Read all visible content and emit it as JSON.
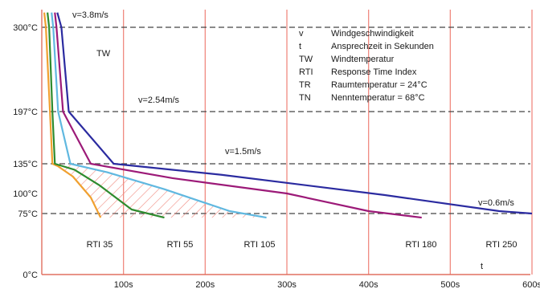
{
  "chart_data": {
    "type": "line",
    "xlabel": "t",
    "ylabel": "TW",
    "xlim": [
      0,
      600
    ],
    "ylim": [
      0,
      300
    ],
    "x_ticks": [
      "100s",
      "200s",
      "300s",
      "400s",
      "500s",
      "600s"
    ],
    "y_ticks": [
      {
        "label": "300°C",
        "value": 300
      },
      {
        "label": "197°C",
        "value": 197
      },
      {
        "label": "135°C",
        "value": 135
      },
      {
        "label": "100°C",
        "value": 100
      },
      {
        "label": "75°C",
        "value": 75
      },
      {
        "label": "0°C",
        "value": 0
      }
    ],
    "velocity_levels": [
      {
        "label": "v=3.8m/s",
        "value": 300
      },
      {
        "label": "v=2.54m/s",
        "value": 197
      },
      {
        "label": "v=1.5m/s",
        "value": 135
      },
      {
        "label": "v=0.6m/s",
        "value": 75
      }
    ],
    "legend": [
      {
        "key": "v",
        "text": "Windgeschwindigkeit"
      },
      {
        "key": "t",
        "text": "Ansprechzeit in Sekunden"
      },
      {
        "key": "TW",
        "text": "Windtemperatur"
      },
      {
        "key": "RTI",
        "text": "Response Time Index"
      },
      {
        "key": "TR",
        "text": "Raumtemperatur = 24°C"
      },
      {
        "key": "TN",
        "text": "Nenntemperatur = 68°C"
      }
    ],
    "series": [
      {
        "name": "RTI 35",
        "color": "#f0a030",
        "x": [
          3,
          5,
          10,
          13,
          20,
          38,
          60,
          72
        ],
        "y": [
          325,
          300,
          197,
          135,
          132,
          120,
          95,
          70
        ]
      },
      {
        "name": "RTI 55",
        "color": "#2e8b2e",
        "x": [
          7,
          9,
          13,
          16,
          40,
          70,
          110,
          150
        ],
        "y": [
          325,
          300,
          197,
          135,
          128,
          110,
          80,
          70
        ]
      },
      {
        "name": "RTI 105",
        "color": "#60b8e0",
        "x": [
          12,
          14,
          20,
          35,
          80,
          150,
          230,
          275
        ],
        "y": [
          325,
          300,
          197,
          135,
          125,
          105,
          78,
          70
        ]
      },
      {
        "name": "RTI 180",
        "color": "#9c1a78",
        "x": [
          16,
          18,
          26,
          60,
          160,
          300,
          400,
          465
        ],
        "y": [
          325,
          300,
          197,
          135,
          118,
          100,
          78,
          70
        ]
      },
      {
        "name": "RTI 250",
        "color": "#2b2ba0",
        "x": [
          19,
          24,
          33,
          88,
          220,
          420,
          560,
          600
        ],
        "y": [
          325,
          300,
          197,
          135,
          122,
          98,
          78,
          75
        ]
      }
    ]
  }
}
